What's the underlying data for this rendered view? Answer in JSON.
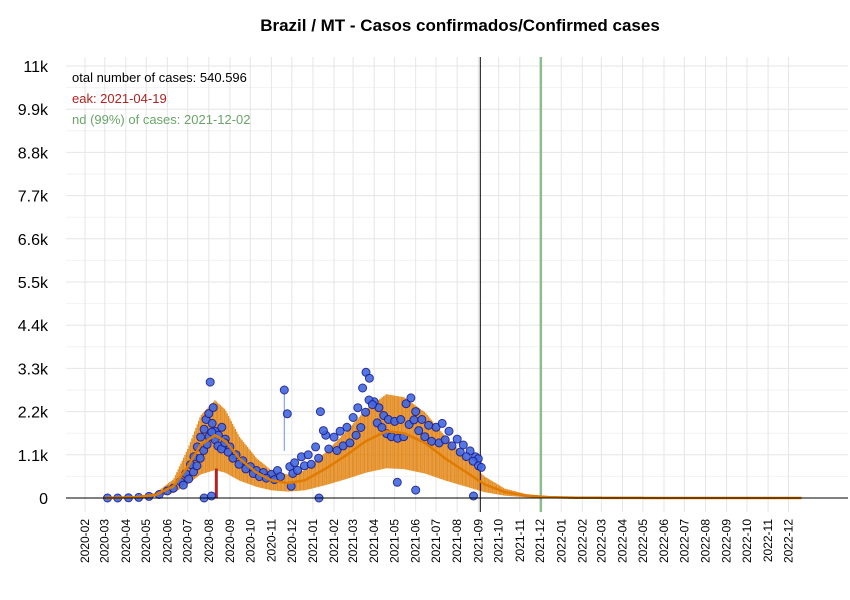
{
  "chart_data": {
    "type": "scatter",
    "title": "Brazil / MT - Casos confirmados/Confirmed cases",
    "xlabel": "",
    "ylabel": "",
    "ylim": [
      0,
      11000
    ],
    "y_ticks": [
      0,
      1100,
      2200,
      3300,
      4400,
      5500,
      6600,
      7700,
      8800,
      9900,
      11000
    ],
    "y_tick_labels": [
      "0",
      "1.1k",
      "2.2k",
      "3.3k",
      "4.4k",
      "5.5k",
      "6.6k",
      "7.7k",
      "8.8k",
      "9.9k",
      "11k"
    ],
    "x_range": [
      "2020-02-01",
      "2023-01-31"
    ],
    "x_tick_labels": [
      "2020-02",
      "2020-03",
      "2020-04",
      "2020-05",
      "2020-06",
      "2020-07",
      "2020-08",
      "2020-09",
      "2020-10",
      "2020-11",
      "2020-12",
      "2021-01",
      "2021-02",
      "2021-03",
      "2021-04",
      "2021-05",
      "2021-06",
      "2021-07",
      "2021-08",
      "2021-09",
      "2021-10",
      "2021-11",
      "2021-12",
      "2022-01",
      "2022-02",
      "2022-03",
      "2022-04",
      "2022-05",
      "2022-06",
      "2022-07",
      "2022-08",
      "2022-09",
      "2022-10",
      "2022-11",
      "2022-12"
    ],
    "grid": true,
    "annotations": {
      "total": "otal number of cases: 540.596",
      "peak": "eak: 2021-04-19",
      "end": "nd (99%) of cases: 2021-12-02"
    },
    "vlines": [
      {
        "date": "2021-09-04",
        "color": "#000000"
      },
      {
        "date": "2021-12-02",
        "color": "#8fbc8f"
      }
    ],
    "peak_bar": {
      "date": "2020-08-12",
      "value": 750
    },
    "spike": {
      "date": "2020-11-20",
      "value": 2750
    },
    "series": [
      {
        "role": "observed",
        "color": "#4169e1",
        "edge": "#1a1a8c",
        "points": [
          [
            "2020-03-05",
            0
          ],
          [
            "2020-03-20",
            0
          ],
          [
            "2020-04-05",
            5
          ],
          [
            "2020-04-20",
            15
          ],
          [
            "2020-05-05",
            40
          ],
          [
            "2020-05-20",
            90
          ],
          [
            "2020-06-01",
            180
          ],
          [
            "2020-06-10",
            250
          ],
          [
            "2020-06-20",
            420
          ],
          [
            "2020-06-28",
            620
          ],
          [
            "2020-07-05",
            850
          ],
          [
            "2020-07-10",
            1050
          ],
          [
            "2020-07-15",
            1300
          ],
          [
            "2020-07-20",
            1550
          ],
          [
            "2020-07-25",
            1750
          ],
          [
            "2020-07-28",
            2000
          ],
          [
            "2020-08-01",
            2150
          ],
          [
            "2020-08-03",
            2950
          ],
          [
            "2020-08-06",
            1900
          ],
          [
            "2020-08-10",
            1700
          ],
          [
            "2020-08-15",
            1600
          ],
          [
            "2020-08-20",
            1800
          ],
          [
            "2020-08-25",
            1500
          ],
          [
            "2020-09-01",
            1300
          ],
          [
            "2020-09-10",
            1100
          ],
          [
            "2020-09-20",
            950
          ],
          [
            "2020-10-01",
            800
          ],
          [
            "2020-10-10",
            700
          ],
          [
            "2020-10-20",
            650
          ],
          [
            "2020-11-01",
            600
          ],
          [
            "2020-11-10",
            700
          ],
          [
            "2020-11-20",
            2750
          ],
          [
            "2020-11-28",
            800
          ],
          [
            "2020-12-05",
            900
          ],
          [
            "2020-12-15",
            1050
          ],
          [
            "2020-12-25",
            1100
          ],
          [
            "2021-01-05",
            1300
          ],
          [
            "2021-01-12",
            2200
          ],
          [
            "2021-01-20",
            1600
          ],
          [
            "2021-02-01",
            1550
          ],
          [
            "2021-02-10",
            1700
          ],
          [
            "2021-02-20",
            1800
          ],
          [
            "2021-03-01",
            2050
          ],
          [
            "2021-03-08",
            2300
          ],
          [
            "2021-03-15",
            2800
          ],
          [
            "2021-03-20",
            3200
          ],
          [
            "2021-03-25",
            3050
          ],
          [
            "2021-04-01",
            2450
          ],
          [
            "2021-04-08",
            2300
          ],
          [
            "2021-04-15",
            2100
          ],
          [
            "2021-04-22",
            2000
          ],
          [
            "2021-05-01",
            1950
          ],
          [
            "2021-05-10",
            2000
          ],
          [
            "2021-05-18",
            2400
          ],
          [
            "2021-05-25",
            2550
          ],
          [
            "2021-06-01",
            2200
          ],
          [
            "2021-06-10",
            2000
          ],
          [
            "2021-06-20",
            1850
          ],
          [
            "2021-07-01",
            1800
          ],
          [
            "2021-07-10",
            1900
          ],
          [
            "2021-07-20",
            1700
          ],
          [
            "2021-08-01",
            1500
          ],
          [
            "2021-08-10",
            1350
          ],
          [
            "2021-08-20",
            1200
          ],
          [
            "2021-08-28",
            1050
          ],
          [
            "2021-09-01",
            1000
          ]
        ],
        "low_points": [
          [
            "2020-07-25",
            0
          ],
          [
            "2020-08-05",
            50
          ],
          [
            "2020-11-30",
            300
          ],
          [
            "2021-01-10",
            0
          ],
          [
            "2021-05-05",
            400
          ],
          [
            "2021-06-01",
            200
          ],
          [
            "2021-08-25",
            50
          ]
        ]
      },
      {
        "role": "model",
        "color": "#e07b00",
        "points": [
          [
            "2020-03-01",
            0
          ],
          [
            "2020-04-15",
            20
          ],
          [
            "2020-05-15",
            80
          ],
          [
            "2020-06-10",
            300
          ],
          [
            "2020-07-01",
            800
          ],
          [
            "2020-07-20",
            1350
          ],
          [
            "2020-08-10",
            1600
          ],
          [
            "2020-08-25",
            1450
          ],
          [
            "2020-09-15",
            1000
          ],
          [
            "2020-10-10",
            650
          ],
          [
            "2020-11-01",
            450
          ],
          [
            "2020-11-25",
            380
          ],
          [
            "2020-12-20",
            450
          ],
          [
            "2021-01-20",
            750
          ],
          [
            "2021-02-20",
            1100
          ],
          [
            "2021-03-20",
            1450
          ],
          [
            "2021-04-19",
            1700
          ],
          [
            "2021-05-15",
            1650
          ],
          [
            "2021-06-15",
            1400
          ],
          [
            "2021-07-15",
            1000
          ],
          [
            "2021-08-15",
            650
          ],
          [
            "2021-09-10",
            350
          ],
          [
            "2021-10-10",
            150
          ],
          [
            "2021-11-10",
            60
          ],
          [
            "2021-12-15",
            20
          ],
          [
            "2022-02-01",
            5
          ],
          [
            "2022-06-01",
            0
          ],
          [
            "2022-12-20",
            0
          ]
        ]
      }
    ]
  }
}
